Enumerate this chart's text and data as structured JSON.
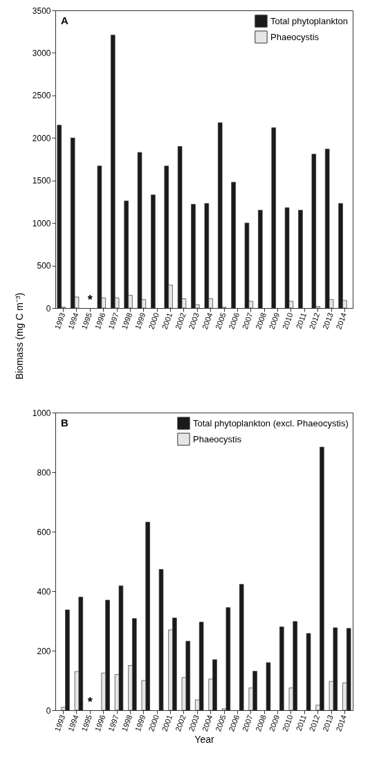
{
  "chart_data": [
    {
      "type": "bar",
      "title": "A",
      "ylabel": "Biomass (mg C m⁻³)",
      "categories": [
        "1993",
        "1994",
        "1995",
        "1996",
        "1997",
        "1998",
        "1999",
        "2000",
        "2001",
        "2002",
        "2003",
        "2004",
        "2005",
        "2006",
        "2007",
        "2008",
        "2009",
        "2010",
        "2011",
        "2012",
        "2013",
        "2014"
      ],
      "series": [
        {
          "name": "Total phytoplankton",
          "color": "#1a1a1a",
          "values": [
            2150,
            2000,
            null,
            1670,
            3210,
            1260,
            1830,
            1330,
            1670,
            1900,
            1220,
            1230,
            2180,
            1480,
            1000,
            1150,
            2120,
            1180,
            1150,
            1810,
            1870,
            1230
          ]
        },
        {
          "name": "Phaeocystis",
          "color": "#e6e6e6",
          "values": [
            10,
            130,
            null,
            120,
            120,
            150,
            100,
            0,
            270,
            110,
            40,
            110,
            10,
            0,
            80,
            0,
            0,
            80,
            0,
            20,
            100,
            90
          ]
        }
      ],
      "ylim": [
        0,
        3500
      ],
      "yticks": [
        0,
        500,
        1000,
        1500,
        2000,
        2500,
        3000,
        3500
      ],
      "grid": false,
      "legend": "top right",
      "annotations": [
        "*"
      ]
    },
    {
      "type": "bar",
      "title": "B",
      "xlabel": "Year",
      "categories": [
        "1993",
        "1994",
        "1995",
        "1996",
        "1997",
        "1998",
        "1999",
        "2000",
        "2001",
        "2002",
        "2003",
        "2004",
        "2005",
        "2006",
        "2007",
        "2008",
        "2009",
        "2010",
        "2011",
        "2012",
        "2013",
        "2014"
      ],
      "series": [
        {
          "name": "Total phytoplankton (excl. Phaeocystis)",
          "color": "#1a1a1a",
          "values": [
            337,
            380,
            null,
            370,
            418,
            308,
            632,
            473,
            310,
            232,
            296,
            170,
            345,
            423,
            131,
            160,
            280,
            298,
            258,
            884,
            277,
            275
          ]
        },
        {
          "name": "Phaeocystis",
          "color": "#e6e6e6",
          "values": [
            10,
            130,
            null,
            125,
            120,
            150,
            100,
            0,
            270,
            110,
            35,
            105,
            5,
            0,
            75,
            0,
            0,
            75,
            0,
            17,
            97,
            92
          ]
        }
      ],
      "ylim": [
        0,
        1000
      ],
      "yticks": [
        0,
        200,
        400,
        600,
        800,
        1000
      ],
      "grid": false,
      "legend": "top right",
      "annotations": [
        "*"
      ]
    }
  ]
}
